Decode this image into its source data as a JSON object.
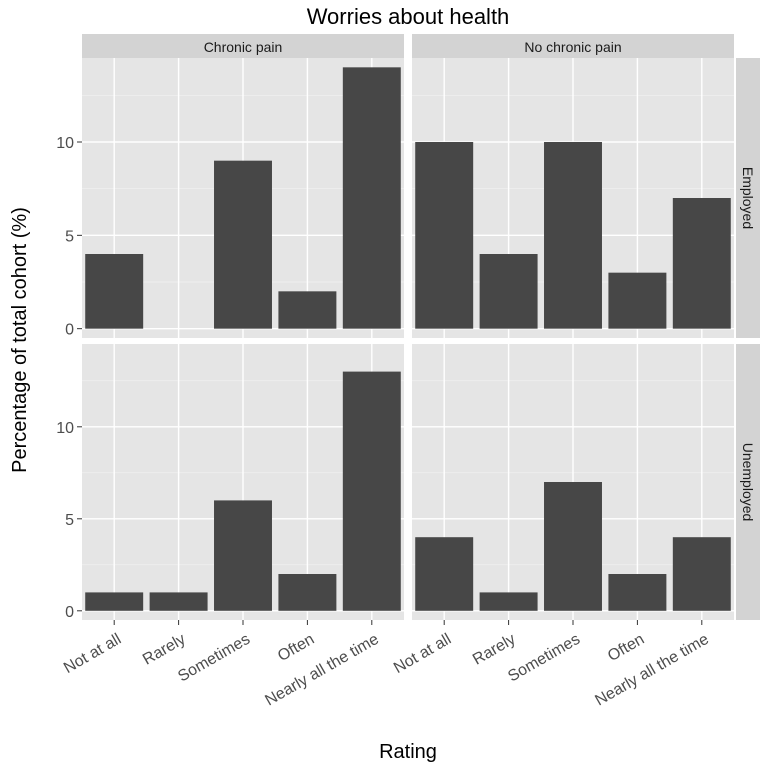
{
  "chart_data": {
    "type": "bar",
    "title": "Worries about health",
    "xlabel": "Rating",
    "ylabel": "Percentage of total cohort (%)",
    "categories": [
      "Not at all",
      "Rarely",
      "Sometimes",
      "Often",
      "Nearly all the time"
    ],
    "ylim": [
      -0.5,
      14.5
    ],
    "yticks": [
      0,
      5,
      10
    ],
    "grid": true,
    "bar_color": "#474747",
    "panel_color": "#e5e5e5",
    "strip_color": "#d3d3d3",
    "facet_cols": [
      "Chronic pain",
      "No chronic pain"
    ],
    "facet_rows": [
      "Employed",
      "Unemployed"
    ],
    "panels": [
      {
        "col": "Chronic pain",
        "row": "Employed",
        "values": [
          4,
          0,
          9,
          2,
          14
        ]
      },
      {
        "col": "No chronic pain",
        "row": "Employed",
        "values": [
          10,
          4,
          10,
          3,
          7
        ]
      },
      {
        "col": "Chronic pain",
        "row": "Unemployed",
        "values": [
          1,
          1,
          6,
          2,
          13
        ]
      },
      {
        "col": "No chronic pain",
        "row": "Unemployed",
        "values": [
          4,
          1,
          7,
          2,
          4
        ]
      }
    ]
  }
}
